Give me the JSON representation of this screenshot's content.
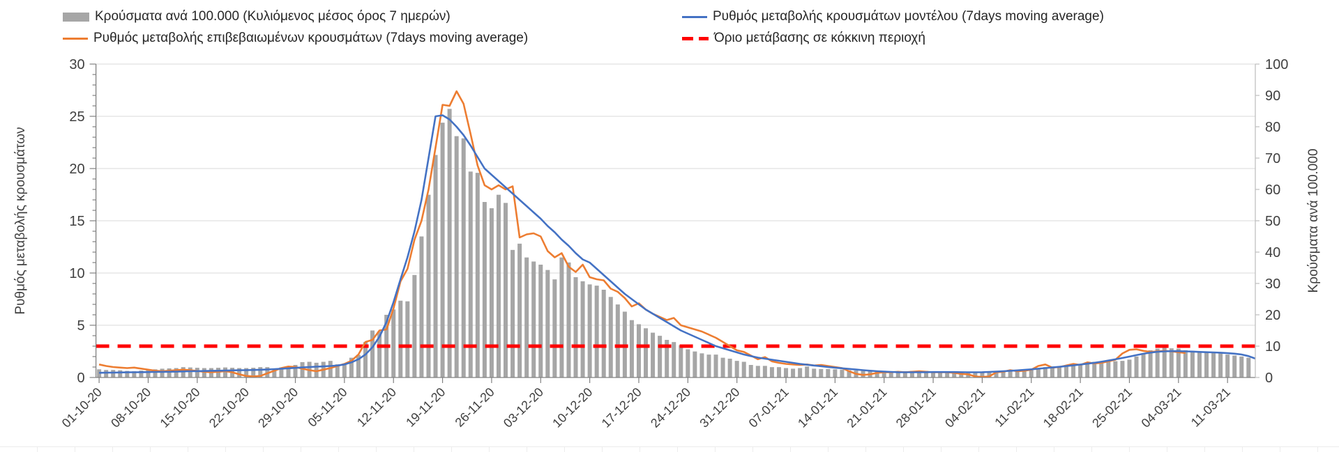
{
  "chart_data": {
    "type": "combo-bar-line",
    "x_tick_labels": [
      "01-10-20",
      "08-10-20",
      "15-10-20",
      "22-10-20",
      "29-10-20",
      "05-11-20",
      "12-11-20",
      "19-11-20",
      "26-11-20",
      "03-12-20",
      "10-12-20",
      "17-12-20",
      "24-12-20",
      "31-12-20",
      "07-01-21",
      "14-01-21",
      "21-01-21",
      "28-01-21",
      "04-02-21",
      "11-02-21",
      "18-02-21",
      "25-02-21",
      "04-03-21",
      "11-03-21"
    ],
    "x_tick_interval_days": 7,
    "left_axis": {
      "title": "Ρυθμός μεταβολής κρουσμάτων",
      "min": 0,
      "max": 30,
      "step": 5
    },
    "right_axis": {
      "title": "Κρούσματα ανά 100.000",
      "min": 0,
      "max": 100,
      "step": 10
    },
    "grid": "horizontal",
    "legend_position": "top",
    "series": {
      "bars": {
        "label": "Κρούσματα ανά 100.000 (Κυλιόμενος μέσος όρος 7 ημερών)",
        "axis": "right",
        "color": "#A6A6A6",
        "values": [
          2.6,
          2.4,
          2.4,
          2.3,
          2.1,
          2.0,
          2.2,
          2.4,
          2.6,
          2.8,
          2.9,
          3.0,
          3.3,
          3.2,
          3.1,
          3.0,
          3.0,
          3.1,
          3.2,
          3.1,
          3.0,
          3.0,
          3.1,
          3.3,
          3.3,
          2.7,
          3.2,
          3.5,
          4.0,
          4.9,
          5.0,
          4.7,
          5.0,
          5.3,
          4.2,
          4.2,
          6.3,
          7.2,
          11.3,
          15.0,
          14.7,
          20.0,
          21.7,
          24.5,
          24.3,
          32.7,
          45.0,
          58.3,
          71.0,
          81.3,
          85.7,
          77.0,
          76.3,
          65.7,
          65.3,
          56.0,
          54.0,
          58.3,
          55.7,
          40.7,
          42.7,
          38.3,
          37.0,
          36.0,
          34.3,
          31.3,
          38.3,
          36.7,
          32.0,
          30.7,
          29.7,
          29.3,
          28.0,
          25.7,
          23.3,
          21.0,
          18.3,
          17.0,
          15.7,
          14.3,
          13.3,
          12.0,
          11.3,
          10.3,
          9.0,
          8.3,
          7.7,
          7.3,
          7.3,
          6.3,
          6.0,
          5.3,
          5.0,
          4.0,
          3.7,
          3.7,
          3.3,
          3.3,
          3.0,
          2.8,
          3.0,
          3.5,
          2.8,
          2.7,
          2.7,
          2.6,
          2.5,
          2.3,
          2.2,
          2.1,
          2.0,
          2.0,
          2.0,
          2.0,
          2.0,
          2.0,
          2.1,
          2.2,
          2.1,
          2.0,
          2.0,
          2.0,
          2.0,
          1.9,
          1.8,
          1.8,
          1.8,
          1.9,
          2.0,
          2.1,
          2.2,
          2.3,
          2.4,
          2.5,
          2.7,
          3.3,
          3.5,
          3.2,
          3.7,
          4.2,
          4.3,
          4.5,
          5.0,
          5.2,
          5.0,
          5.2,
          5.3,
          5.7,
          6.7,
          7.7,
          8.7,
          9.2,
          10.2,
          9.3,
          9.2,
          8.7,
          8.5,
          8.3,
          8.2,
          8.0,
          7.7,
          7.3,
          7.0,
          6.7,
          6.3
        ]
      },
      "model": {
        "label": "Ρυθμός μεταβολής κρουσμάτων μοντέλου (7days moving average)",
        "axis": "left",
        "color": "#4472C4",
        "values": [
          0.45,
          0.46,
          0.47,
          0.48,
          0.49,
          0.5,
          0.51,
          0.52,
          0.53,
          0.54,
          0.55,
          0.56,
          0.58,
          0.6,
          0.61,
          0.62,
          0.64,
          0.65,
          0.66,
          0.68,
          0.69,
          0.7,
          0.72,
          0.74,
          0.77,
          0.8,
          0.84,
          0.88,
          0.92,
          0.96,
          1.0,
          1.03,
          1.06,
          1.1,
          1.15,
          1.25,
          1.45,
          1.75,
          2.2,
          2.9,
          3.9,
          5.3,
          7.2,
          9.4,
          11.5,
          14.0,
          17.0,
          21.0,
          25.0,
          25.1,
          24.7,
          24.0,
          23.2,
          22.2,
          21.1,
          20.0,
          19.4,
          18.8,
          18.2,
          17.6,
          17.0,
          16.4,
          15.8,
          15.2,
          14.5,
          13.9,
          13.2,
          12.6,
          11.9,
          11.3,
          11.0,
          10.4,
          9.8,
          9.2,
          8.6,
          8.0,
          7.5,
          7.0,
          6.5,
          6.1,
          5.7,
          5.3,
          4.9,
          4.5,
          4.2,
          3.9,
          3.6,
          3.3,
          3.0,
          2.8,
          2.6,
          2.4,
          2.2,
          2.05,
          1.9,
          1.8,
          1.7,
          1.6,
          1.5,
          1.4,
          1.3,
          1.22,
          1.15,
          1.08,
          1.0,
          0.94,
          0.88,
          0.82,
          0.76,
          0.7,
          0.65,
          0.6,
          0.56,
          0.53,
          0.51,
          0.5,
          0.5,
          0.5,
          0.51,
          0.52,
          0.52,
          0.52,
          0.52,
          0.51,
          0.5,
          0.5,
          0.51,
          0.53,
          0.56,
          0.6,
          0.64,
          0.68,
          0.73,
          0.78,
          0.84,
          0.9,
          0.96,
          1.02,
          1.09,
          1.16,
          1.24,
          1.32,
          1.41,
          1.51,
          1.62,
          1.74,
          1.87,
          2.0,
          2.14,
          2.27,
          2.38,
          2.46,
          2.5,
          2.52,
          2.52,
          2.5,
          2.48,
          2.45,
          2.42,
          2.4,
          2.37,
          2.33,
          2.28,
          2.2,
          2.05,
          1.8
        ]
      },
      "confirmed": {
        "label": "Ρυθμός μεταβολής επιβεβαιωμένων κρουσμάτων (7days moving average)",
        "axis": "left",
        "color": "#ED7D31",
        "values": [
          1.25,
          1.1,
          1.0,
          0.95,
          0.9,
          0.95,
          0.85,
          0.75,
          0.65,
          0.6,
          0.65,
          0.7,
          0.75,
          0.7,
          0.62,
          0.55,
          0.5,
          0.55,
          0.6,
          0.5,
          0.3,
          0.15,
          0.1,
          0.15,
          0.4,
          0.65,
          0.9,
          1.05,
          1.0,
          0.85,
          0.7,
          0.6,
          0.75,
          0.9,
          1.1,
          1.3,
          1.6,
          2.2,
          3.4,
          3.6,
          4.5,
          4.6,
          6.6,
          9.2,
          10.4,
          13.2,
          15.0,
          18.0,
          22.0,
          26.1,
          26.0,
          27.4,
          26.2,
          23.3,
          20.3,
          18.4,
          18.0,
          18.4,
          18.0,
          18.3,
          13.4,
          13.7,
          13.8,
          13.5,
          12.1,
          11.5,
          11.9,
          10.6,
          10.1,
          10.8,
          9.6,
          9.4,
          9.3,
          8.5,
          8.2,
          7.6,
          6.8,
          7.1,
          6.5,
          6.1,
          5.8,
          5.5,
          5.7,
          5.0,
          4.8,
          4.6,
          4.4,
          4.1,
          3.8,
          3.4,
          3.0,
          2.6,
          2.45,
          2.1,
          1.75,
          1.95,
          1.55,
          1.4,
          1.3,
          1.25,
          1.2,
          1.25,
          1.15,
          1.2,
          1.1,
          1.0,
          0.9,
          0.6,
          0.35,
          0.25,
          0.3,
          0.45,
          0.5,
          0.5,
          0.55,
          0.5,
          0.55,
          0.6,
          0.55,
          0.5,
          0.5,
          0.5,
          0.45,
          0.35,
          0.3,
          0.1,
          0.05,
          0.1,
          0.5,
          0.55,
          0.7,
          0.6,
          0.65,
          0.75,
          1.1,
          1.25,
          0.95,
          1.0,
          1.15,
          1.3,
          1.2,
          1.45,
          1.35,
          1.4,
          1.55,
          1.7,
          2.3,
          2.65,
          2.7,
          2.55,
          2.45,
          2.5,
          2.55,
          2.5,
          2.42,
          2.35
        ]
      },
      "threshold": {
        "label": "Όριο μετάβασης σε κόκκινη περιοχή",
        "axis": "left",
        "color": "#FF0000",
        "value": 3
      }
    },
    "colors": {
      "gridline": "#D9D9D9",
      "axis_line": "#808080",
      "right_axis_line": "#BFBFBF",
      "tick_text": "#404040"
    }
  }
}
